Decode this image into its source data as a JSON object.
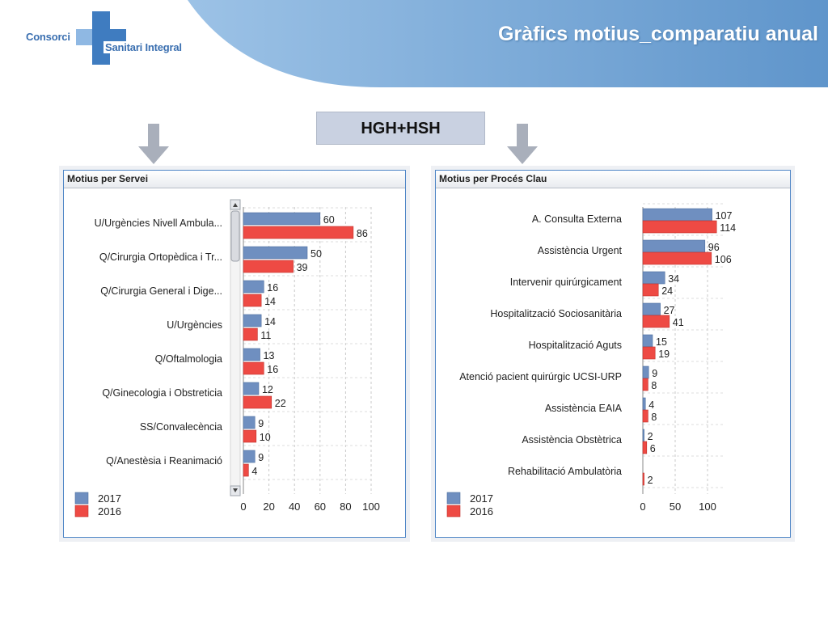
{
  "header": {
    "logo_word1": "Consorci",
    "logo_word2": "Sanitari Integral",
    "title": "Gràfics motius_comparatiu anual"
  },
  "subtitle": "HGH+HSH",
  "colors": {
    "series_2017": "#6f8fc0",
    "series_2016": "#ee4a44",
    "header_blue": "#7ea9d6"
  },
  "icons": [
    "arrow-down-icon",
    "scroll-up-icon",
    "scroll-down-icon"
  ],
  "chart_data": [
    {
      "type": "bar",
      "orientation": "horizontal",
      "title": "Motius per Servei",
      "categories": [
        "U/Urgències Nivell Ambula...",
        "Q/Cirurgia Ortopèdica i Tr...",
        "Q/Cirurgia General i Dige...",
        "U/Urgències",
        "Q/Oftalmologia",
        "Q/Ginecologia i Obstreticia",
        "SS/Convalecència",
        "Q/Anestèsia i Reanimació"
      ],
      "series": [
        {
          "name": "2017",
          "values": [
            60,
            50,
            16,
            14,
            13,
            12,
            9,
            9
          ]
        },
        {
          "name": "2016",
          "values": [
            86,
            39,
            14,
            11,
            16,
            22,
            10,
            4
          ]
        }
      ],
      "xlim": [
        0,
        100
      ],
      "xticks": [
        0,
        20,
        40,
        60,
        80,
        100
      ],
      "grid": true,
      "legend": "bottom-left",
      "scrollbar": true
    },
    {
      "type": "bar",
      "orientation": "horizontal",
      "title": "Motius per Procés Clau",
      "categories": [
        "A. Consulta Externa",
        "Assistència Urgent",
        "Intervenir quirúrgicament",
        "Hospitalització Sociosanitària",
        "Hospitalització Aguts",
        "Atenció pacient quirúrgic UCSI-URP",
        "Assistència EAIA",
        "Assistència Obstètrica",
        "Rehabilitació Ambulatòria"
      ],
      "series": [
        {
          "name": "2017",
          "values": [
            107,
            96,
            34,
            27,
            15,
            9,
            4,
            2,
            null
          ]
        },
        {
          "name": "2016",
          "values": [
            114,
            106,
            24,
            41,
            19,
            8,
            8,
            6,
            2
          ]
        }
      ],
      "xlim": [
        0,
        125
      ],
      "xticks": [
        0,
        50,
        100
      ],
      "grid": true,
      "legend": "bottom-left",
      "scrollbar": false
    }
  ]
}
